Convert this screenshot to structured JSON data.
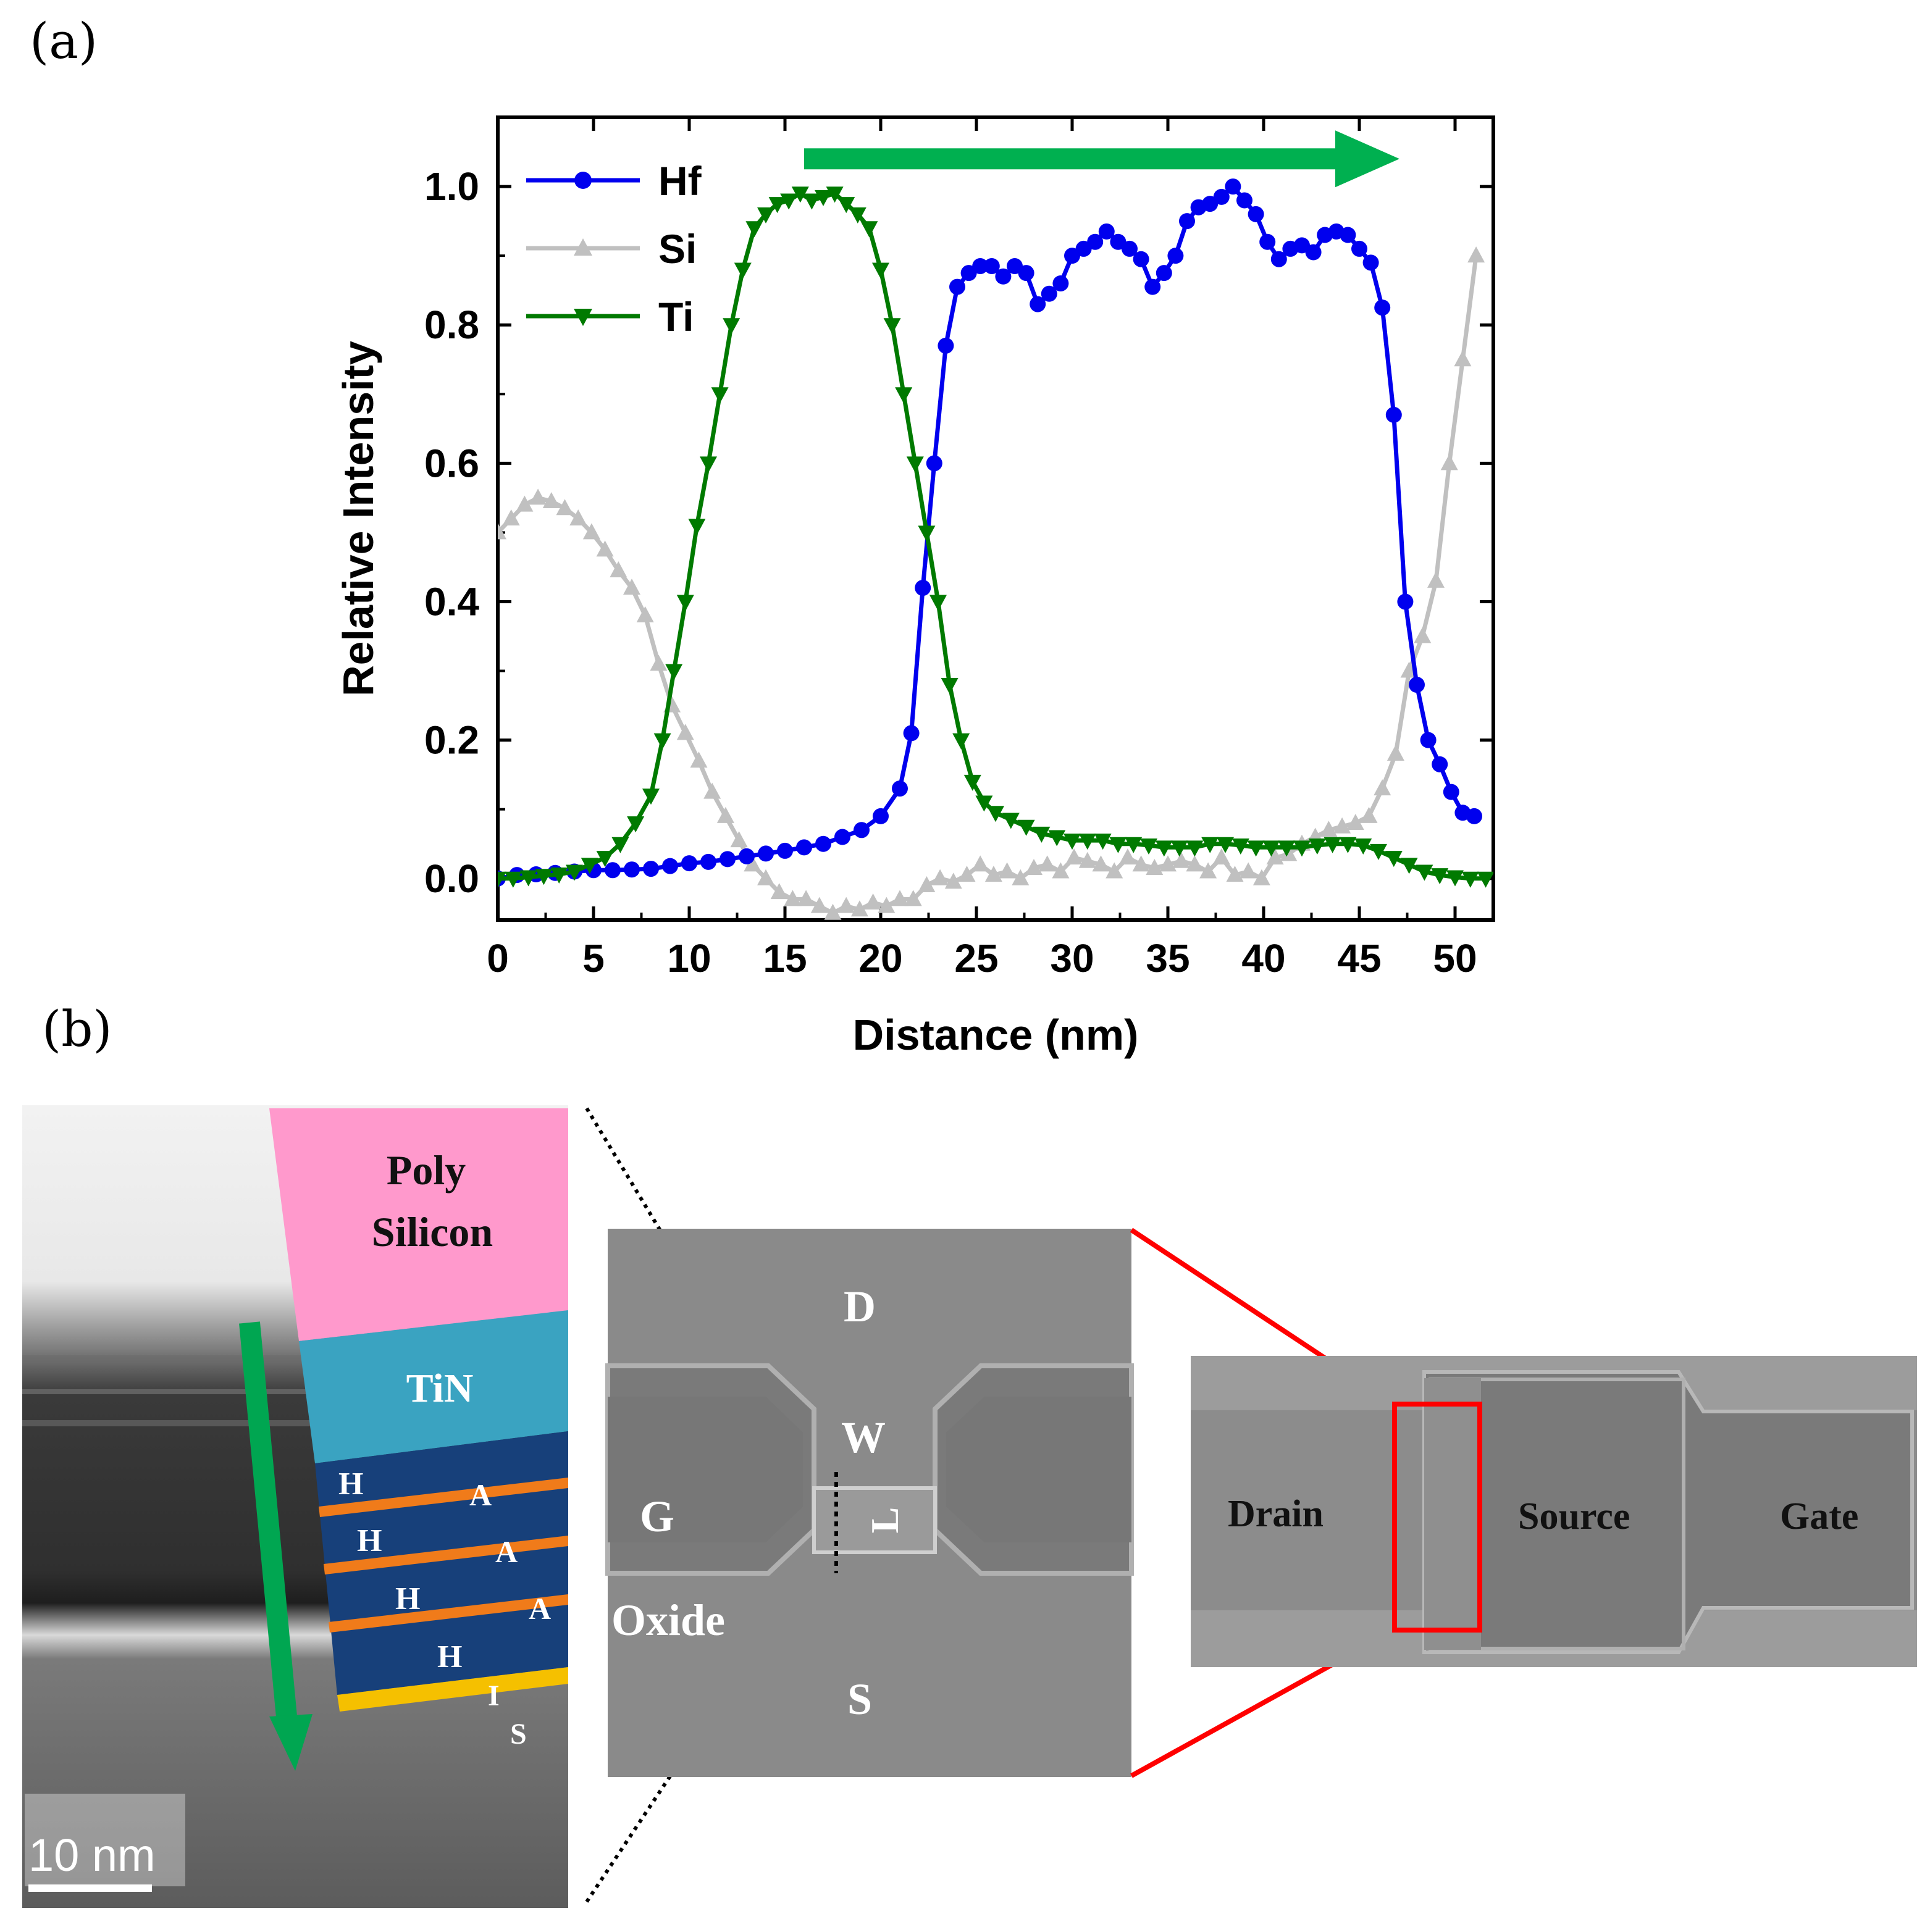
{
  "panel_a_label": "(a)",
  "panel_b_label": "(b)",
  "chart_data": {
    "type": "line",
    "title": "",
    "xlabel": "Distance (nm)",
    "ylabel": "Relative Intensity",
    "xlim": [
      0,
      52
    ],
    "ylim": [
      -0.06,
      1.1
    ],
    "xticks": [
      0,
      5,
      10,
      15,
      20,
      25,
      30,
      35,
      40,
      45,
      50
    ],
    "yticks": [
      0.0,
      0.2,
      0.4,
      0.6,
      0.8,
      1.0
    ],
    "yticklabels": [
      "0.0",
      "0.2",
      "0.4",
      "0.6",
      "0.8",
      "1.0"
    ],
    "legend_position": "top-left",
    "annotation_arrow": {
      "from_x": 16,
      "to_x": 46,
      "y": 1.04,
      "color": "#00b050"
    },
    "series": [
      {
        "name": "Hf",
        "color": "#0000ee",
        "marker": "circle",
        "points": [
          [
            0,
            0.0
          ],
          [
            1,
            0.005
          ],
          [
            2,
            0.006
          ],
          [
            3,
            0.008
          ],
          [
            4,
            0.01
          ],
          [
            5,
            0.012
          ],
          [
            6,
            0.012
          ],
          [
            7,
            0.013
          ],
          [
            8,
            0.014
          ],
          [
            9,
            0.018
          ],
          [
            10,
            0.022
          ],
          [
            11,
            0.024
          ],
          [
            12,
            0.028
          ],
          [
            13,
            0.032
          ],
          [
            14,
            0.036
          ],
          [
            15,
            0.04
          ],
          [
            16,
            0.045
          ],
          [
            17,
            0.05
          ],
          [
            18,
            0.06
          ],
          [
            19,
            0.07
          ],
          [
            20,
            0.09
          ],
          [
            21,
            0.13
          ],
          [
            21.6,
            0.21
          ],
          [
            22.2,
            0.42
          ],
          [
            22.8,
            0.6
          ],
          [
            23.4,
            0.77
          ],
          [
            24,
            0.855
          ],
          [
            24.6,
            0.875
          ],
          [
            25.2,
            0.885
          ],
          [
            25.8,
            0.885
          ],
          [
            26.4,
            0.87
          ],
          [
            27,
            0.885
          ],
          [
            27.6,
            0.875
          ],
          [
            28.2,
            0.83
          ],
          [
            28.8,
            0.845
          ],
          [
            29.4,
            0.86
          ],
          [
            30,
            0.9
          ],
          [
            30.6,
            0.91
          ],
          [
            31.2,
            0.92
          ],
          [
            31.8,
            0.935
          ],
          [
            32.4,
            0.92
          ],
          [
            33,
            0.91
          ],
          [
            33.6,
            0.895
          ],
          [
            34.2,
            0.855
          ],
          [
            34.8,
            0.875
          ],
          [
            35.4,
            0.9
          ],
          [
            36,
            0.95
          ],
          [
            36.6,
            0.97
          ],
          [
            37.2,
            0.975
          ],
          [
            37.8,
            0.985
          ],
          [
            38.4,
            1.0
          ],
          [
            39,
            0.98
          ],
          [
            39.6,
            0.96
          ],
          [
            40.2,
            0.92
          ],
          [
            40.8,
            0.895
          ],
          [
            41.4,
            0.91
          ],
          [
            42,
            0.915
          ],
          [
            42.6,
            0.905
          ],
          [
            43.2,
            0.93
          ],
          [
            43.8,
            0.935
          ],
          [
            44.4,
            0.93
          ],
          [
            45,
            0.91
          ],
          [
            45.6,
            0.89
          ],
          [
            46.2,
            0.825
          ],
          [
            46.8,
            0.67
          ],
          [
            47.4,
            0.4
          ],
          [
            48,
            0.28
          ],
          [
            48.6,
            0.2
          ],
          [
            49.2,
            0.165
          ],
          [
            49.8,
            0.125
          ],
          [
            50.4,
            0.095
          ],
          [
            51,
            0.09
          ]
        ]
      },
      {
        "name": "Si",
        "color": "#c0c0c0",
        "marker": "triangle-up",
        "points": [
          [
            0,
            0.5
          ],
          [
            0.7,
            0.52
          ],
          [
            1.4,
            0.54
          ],
          [
            2.1,
            0.55
          ],
          [
            2.8,
            0.545
          ],
          [
            3.5,
            0.535
          ],
          [
            4.2,
            0.52
          ],
          [
            4.9,
            0.5
          ],
          [
            5.6,
            0.475
          ],
          [
            6.3,
            0.445
          ],
          [
            7,
            0.42
          ],
          [
            7.7,
            0.38
          ],
          [
            8.4,
            0.31
          ],
          [
            9.1,
            0.25
          ],
          [
            9.8,
            0.21
          ],
          [
            10.5,
            0.17
          ],
          [
            11.2,
            0.125
          ],
          [
            11.9,
            0.09
          ],
          [
            12.6,
            0.055
          ],
          [
            13.3,
            0.02
          ],
          [
            14,
            0.0
          ],
          [
            14.7,
            -0.02
          ],
          [
            15.4,
            -0.03
          ],
          [
            16.1,
            -0.03
          ],
          [
            16.8,
            -0.04
          ],
          [
            17.5,
            -0.05
          ],
          [
            18.2,
            -0.04
          ],
          [
            18.9,
            -0.045
          ],
          [
            19.6,
            -0.035
          ],
          [
            20.3,
            -0.04
          ],
          [
            21,
            -0.03
          ],
          [
            21.7,
            -0.03
          ],
          [
            22.4,
            -0.01
          ],
          [
            23.1,
            0.0
          ],
          [
            23.8,
            -0.005
          ],
          [
            24.5,
            0.005
          ],
          [
            25.2,
            0.02
          ],
          [
            25.9,
            0.005
          ],
          [
            26.6,
            0.01
          ],
          [
            27.3,
            0.0
          ],
          [
            28,
            0.015
          ],
          [
            28.7,
            0.02
          ],
          [
            29.4,
            0.01
          ],
          [
            30.1,
            0.03
          ],
          [
            30.8,
            0.025
          ],
          [
            31.5,
            0.02
          ],
          [
            32.2,
            0.01
          ],
          [
            32.9,
            0.03
          ],
          [
            33.6,
            0.02
          ],
          [
            34.3,
            0.015
          ],
          [
            35,
            0.02
          ],
          [
            35.7,
            0.025
          ],
          [
            36.4,
            0.02
          ],
          [
            37.1,
            0.01
          ],
          [
            37.8,
            0.03
          ],
          [
            38.5,
            0.005
          ],
          [
            39.2,
            0.01
          ],
          [
            39.9,
            0.0
          ],
          [
            40.6,
            0.03
          ],
          [
            41.3,
            0.035
          ],
          [
            42,
            0.05
          ],
          [
            42.7,
            0.06
          ],
          [
            43.4,
            0.07
          ],
          [
            44.1,
            0.075
          ],
          [
            44.8,
            0.08
          ],
          [
            45.5,
            0.09
          ],
          [
            46.2,
            0.13
          ],
          [
            46.9,
            0.18
          ],
          [
            47.6,
            0.3
          ],
          [
            48.3,
            0.35
          ],
          [
            49,
            0.43
          ],
          [
            49.7,
            0.6
          ],
          [
            50.4,
            0.75
          ],
          [
            51.1,
            0.9
          ]
        ]
      },
      {
        "name": "Ti",
        "color": "#007a00",
        "marker": "triangle-down",
        "points": [
          [
            0,
            0.0
          ],
          [
            0.8,
            0.0
          ],
          [
            1.6,
            0.002
          ],
          [
            2.4,
            0.004
          ],
          [
            3.2,
            0.006
          ],
          [
            4,
            0.01
          ],
          [
            4.8,
            0.02
          ],
          [
            5.6,
            0.03
          ],
          [
            6.4,
            0.05
          ],
          [
            7.2,
            0.08
          ],
          [
            8,
            0.12
          ],
          [
            8.6,
            0.2
          ],
          [
            9.2,
            0.3
          ],
          [
            9.8,
            0.4
          ],
          [
            10.4,
            0.51
          ],
          [
            11,
            0.6
          ],
          [
            11.6,
            0.7
          ],
          [
            12.2,
            0.8
          ],
          [
            12.8,
            0.88
          ],
          [
            13.4,
            0.94
          ],
          [
            14,
            0.96
          ],
          [
            14.6,
            0.975
          ],
          [
            15.2,
            0.98
          ],
          [
            15.8,
            0.99
          ],
          [
            16.4,
            0.98
          ],
          [
            17,
            0.985
          ],
          [
            17.6,
            0.99
          ],
          [
            18.2,
            0.975
          ],
          [
            18.8,
            0.96
          ],
          [
            19.4,
            0.94
          ],
          [
            20,
            0.88
          ],
          [
            20.6,
            0.8
          ],
          [
            21.2,
            0.7
          ],
          [
            21.8,
            0.6
          ],
          [
            22.4,
            0.5
          ],
          [
            23,
            0.4
          ],
          [
            23.6,
            0.28
          ],
          [
            24.2,
            0.2
          ],
          [
            24.8,
            0.14
          ],
          [
            25.4,
            0.11
          ],
          [
            26,
            0.095
          ],
          [
            26.8,
            0.085
          ],
          [
            27.6,
            0.075
          ],
          [
            28.4,
            0.065
          ],
          [
            29.2,
            0.06
          ],
          [
            30,
            0.055
          ],
          [
            30.8,
            0.055
          ],
          [
            31.6,
            0.055
          ],
          [
            32.4,
            0.05
          ],
          [
            33.2,
            0.05
          ],
          [
            34,
            0.048
          ],
          [
            34.8,
            0.045
          ],
          [
            35.6,
            0.045
          ],
          [
            36.4,
            0.045
          ],
          [
            37.2,
            0.05
          ],
          [
            38,
            0.05
          ],
          [
            38.8,
            0.048
          ],
          [
            39.6,
            0.045
          ],
          [
            40.4,
            0.045
          ],
          [
            41.2,
            0.045
          ],
          [
            42,
            0.045
          ],
          [
            42.8,
            0.048
          ],
          [
            43.6,
            0.05
          ],
          [
            44.4,
            0.05
          ],
          [
            45.2,
            0.048
          ],
          [
            46,
            0.04
          ],
          [
            46.8,
            0.03
          ],
          [
            47.6,
            0.02
          ],
          [
            48.4,
            0.01
          ],
          [
            49.2,
            0.005
          ],
          [
            50,
            0.002
          ],
          [
            50.8,
            0.0
          ],
          [
            51.6,
            0.0
          ]
        ]
      }
    ]
  },
  "tem_image": {
    "layers": {
      "poly": "Poly\nSilicon",
      "poly_line1": "Poly",
      "poly_line2": "Silicon",
      "tin": "TiN",
      "h1": "H",
      "h2": "H",
      "h3": "H",
      "h4": "H",
      "a1": "A",
      "a2": "A",
      "a3": "A",
      "i": "I",
      "s": "S"
    },
    "scale_bar": "10 nm",
    "colors": {
      "poly": "#ff99cc",
      "tin": "#3aa3c1",
      "hfo": "#17407a",
      "al2o3": "#f07b1a",
      "interface": "#f5c000",
      "arrow": "#00a651"
    }
  },
  "sem_middle": {
    "labels": {
      "d": "D",
      "w": "W",
      "g": "G",
      "l": "L",
      "oxide": "Oxide",
      "s": "S"
    }
  },
  "sem_right": {
    "labels": {
      "drain": "Drain",
      "source": "Source",
      "gate": "Gate"
    },
    "highlight_color": "#ff0000"
  }
}
